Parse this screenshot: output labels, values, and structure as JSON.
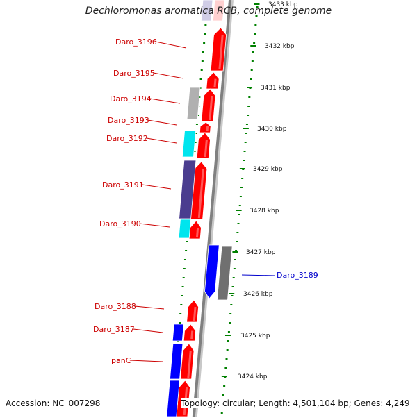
{
  "title": "Dechloromonas aromatica RCB, complete genome",
  "accession_text": "Accession: NC_007298",
  "topology_text": "Topology: circular; Length: 4,501,104 bp; Genes: 4,249",
  "genes": [
    {
      "label": "Daro_3196",
      "color": "#cc0000"
    },
    {
      "label": "Daro_3195",
      "color": "#cc0000"
    },
    {
      "label": "Daro_3194",
      "color": "#cc0000"
    },
    {
      "label": "Daro_3193",
      "color": "#cc0000"
    },
    {
      "label": "Daro_3192",
      "color": "#cc0000"
    },
    {
      "label": "Daro_3191",
      "color": "#cc0000"
    },
    {
      "label": "Daro_3190",
      "color": "#cc0000"
    },
    {
      "label": "Daro_3189",
      "color": "#0000cc"
    },
    {
      "label": "Daro_3188",
      "color": "#cc0000"
    },
    {
      "label": "Daro_3187",
      "color": "#cc0000"
    },
    {
      "label": "panC",
      "color": "#cc0000"
    }
  ],
  "scale_labels": [
    "3433 kbp",
    "3432 kbp",
    "3431 kbp",
    "3430 kbp",
    "3429 kbp",
    "3428 kbp",
    "3427 kbp",
    "3426 kbp",
    "3425 kbp",
    "3424 kbp"
  ],
  "colors": {
    "forward_gene": "#ff0000",
    "reverse_gene": "#0000ff",
    "rna_feature": "#00e5ee",
    "other_feature": "#4a3d8f",
    "pseudo_feature": "#b0b0b0",
    "backbone": "#808080",
    "tick": "#008000"
  }
}
